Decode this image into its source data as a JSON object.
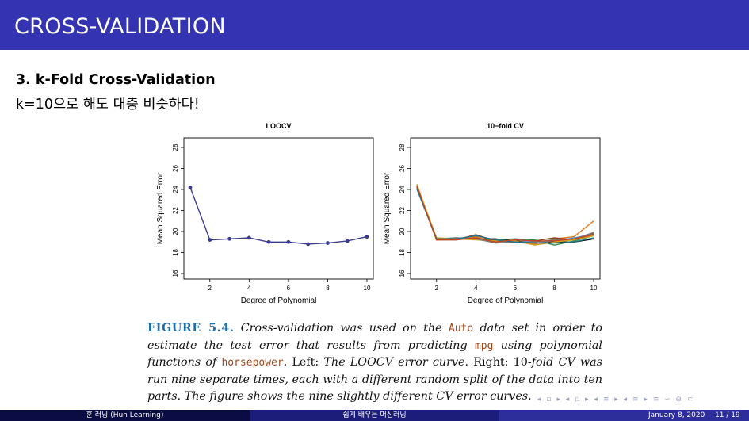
{
  "slide": {
    "title": "CROSS-VALIDATION",
    "heading": "3. k-Fold Cross-Validation",
    "subtext": "k=10으로 해도 대충 비슷하다!"
  },
  "colors": {
    "title_bar": "#3434b3",
    "caption_label": "#1f6fa8",
    "code_text": "#a24a1e"
  },
  "caption": {
    "label": "FIGURE 5.4.",
    "p1": " Cross-validation was used on the ",
    "c1": "Auto",
    "p2": " data set in order to estimate the test error that results from predicting ",
    "c2": "mpg",
    "p3": " using polynomial functions of ",
    "c3": "horsepower",
    "p4": ". ",
    "u1": "Left:",
    "p5": " The LOOCV error curve. ",
    "u2": "Right: 10-",
    "p6": "fold CV was run nine separate times, each with a different random split of the data into ten parts. The figure shows the nine slightly different CV error curves."
  },
  "nav_icons": "◂ ▫ ▸ ◂ ▫ ▸ ◂ ≡ ▸ ◂ ≡ ▸   ≡   ∽ ⊖ ⊂",
  "footer": {
    "author": "훈 러닝 (Hun Learning)",
    "center": "쉽게 배우는 머신러닝",
    "date": "January 8, 2020",
    "page": "11 / 19"
  },
  "chart_data": [
    {
      "type": "line",
      "title": "LOOCV",
      "xlabel": "Degree of Polynomial",
      "ylabel": "Mean Squared Error",
      "xlim": [
        1,
        10
      ],
      "ylim": [
        16,
        28
      ],
      "xticks": [
        "2",
        "4",
        "6",
        "8",
        "10"
      ],
      "yticks": [
        "16",
        "18",
        "20",
        "22",
        "24",
        "26",
        "28"
      ],
      "series": [
        {
          "color": "#3b3b8f",
          "markers": true,
          "x": [
            1,
            2,
            3,
            4,
            5,
            6,
            7,
            8,
            9,
            10
          ],
          "y": [
            24.2,
            19.2,
            19.3,
            19.4,
            19.0,
            19.0,
            18.8,
            18.9,
            19.1,
            19.5
          ]
        }
      ]
    },
    {
      "type": "line",
      "title": "10−fold CV",
      "xlabel": "Degree of Polynomial",
      "ylabel": "Mean Squared Error",
      "xlim": [
        1,
        10
      ],
      "ylim": [
        16,
        28
      ],
      "xticks": [
        "2",
        "4",
        "6",
        "8",
        "10"
      ],
      "yticks": [
        "16",
        "18",
        "20",
        "22",
        "24",
        "26",
        "28"
      ],
      "series": [
        {
          "color": "#000000",
          "x": [
            1,
            2,
            3,
            4,
            5,
            6,
            7,
            8,
            9,
            10
          ],
          "y": [
            24.1,
            19.3,
            19.3,
            19.3,
            19.3,
            19.1,
            19.1,
            19.0,
            19.0,
            19.3
          ]
        },
        {
          "color": "#e07b1f",
          "x": [
            1,
            2,
            3,
            4,
            5,
            6,
            7,
            8,
            9,
            10
          ],
          "y": [
            24.5,
            19.2,
            19.3,
            19.5,
            19.0,
            19.0,
            18.8,
            19.3,
            19.5,
            21.0
          ]
        },
        {
          "color": "#2e8b57",
          "x": [
            1,
            2,
            3,
            4,
            5,
            6,
            7,
            8,
            9,
            10
          ],
          "y": [
            24.3,
            19.3,
            19.4,
            19.3,
            19.2,
            19.3,
            19.2,
            18.7,
            19.1,
            19.6
          ]
        },
        {
          "color": "#8b4513",
          "x": [
            1,
            2,
            3,
            4,
            5,
            6,
            7,
            8,
            9,
            10
          ],
          "y": [
            24.2,
            19.2,
            19.2,
            19.7,
            19.1,
            19.0,
            19.1,
            19.4,
            19.2,
            19.8
          ]
        },
        {
          "color": "#4aa3df",
          "x": [
            1,
            2,
            3,
            4,
            5,
            6,
            7,
            8,
            9,
            10
          ],
          "y": [
            24.0,
            19.3,
            19.2,
            19.4,
            18.9,
            19.2,
            19.0,
            19.1,
            19.4,
            19.7
          ]
        },
        {
          "color": "#d4a017",
          "x": [
            1,
            2,
            3,
            4,
            5,
            6,
            7,
            8,
            9,
            10
          ],
          "y": [
            24.4,
            19.4,
            19.3,
            19.2,
            19.1,
            19.1,
            18.7,
            19.0,
            19.2,
            19.6
          ]
        },
        {
          "color": "#7a7a7a",
          "x": [
            1,
            2,
            3,
            4,
            5,
            6,
            7,
            8,
            9,
            10
          ],
          "y": [
            24.2,
            19.2,
            19.4,
            19.3,
            18.9,
            19.0,
            19.0,
            19.2,
            19.3,
            19.9
          ]
        },
        {
          "color": "#1e6f8a",
          "x": [
            1,
            2,
            3,
            4,
            5,
            6,
            7,
            8,
            9,
            10
          ],
          "y": [
            24.1,
            19.3,
            19.3,
            19.6,
            19.2,
            19.0,
            18.9,
            18.9,
            19.0,
            19.4
          ]
        },
        {
          "color": "#c2451e",
          "x": [
            1,
            2,
            3,
            4,
            5,
            6,
            7,
            8,
            9,
            10
          ],
          "y": [
            24.3,
            19.2,
            19.2,
            19.4,
            19.0,
            19.2,
            19.1,
            19.1,
            19.3,
            19.7
          ]
        }
      ]
    }
  ]
}
